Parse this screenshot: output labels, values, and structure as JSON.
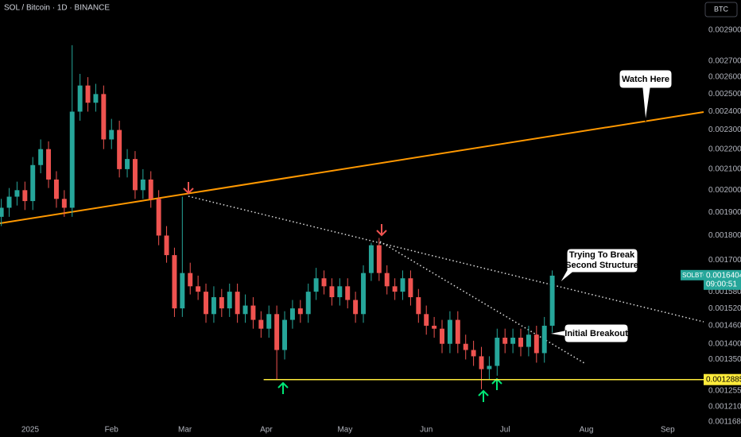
{
  "header": {
    "symbol": "SOL / Bitcoin · 1D · BINANCE",
    "currency_button": "BTC"
  },
  "chart_data": {
    "type": "candlestick",
    "x": [
      -11,
      -8,
      -5,
      -2,
      1,
      4,
      7,
      10,
      13,
      16,
      19,
      22,
      25,
      28,
      31,
      34,
      37,
      40,
      43,
      46,
      49,
      52,
      55,
      58,
      61,
      64,
      67,
      70,
      73,
      76,
      79,
      82,
      85,
      88,
      91,
      94,
      97,
      100,
      103,
      106,
      109,
      112,
      115,
      118,
      121,
      124,
      127,
      130,
      133,
      136,
      139,
      142,
      145,
      148,
      151,
      154,
      157,
      160,
      163,
      166,
      169,
      172,
      175,
      178,
      181,
      184,
      187,
      190,
      193,
      196,
      199
    ],
    "open": [
      0.00188,
      0.00192,
      0.00197,
      0.002,
      0.00195,
      0.00212,
      0.0022,
      0.00205,
      0.00196,
      0.00192,
      0.0024,
      0.00255,
      0.00245,
      0.0025,
      0.00225,
      0.0023,
      0.0021,
      0.00215,
      0.002,
      0.00205,
      0.00196,
      0.0018,
      0.00172,
      0.00152,
      0.00165,
      0.0016,
      0.00158,
      0.0015,
      0.00156,
      0.00152,
      0.00158,
      0.0015,
      0.00153,
      0.00148,
      0.00145,
      0.0015,
      0.00138,
      0.00148,
      0.00152,
      0.0015,
      0.00158,
      0.00163,
      0.0016,
      0.00156,
      0.0016,
      0.00155,
      0.0015,
      0.00165,
      0.00176,
      0.00165,
      0.0016,
      0.00158,
      0.00163,
      0.00156,
      0.0015,
      0.00146,
      0.00145,
      0.0014,
      0.00148,
      0.0014,
      0.00138,
      0.00136,
      0.00132,
      0.00133,
      0.00142,
      0.0014,
      0.00142,
      0.00139,
      0.00143,
      0.00137,
      0.00146
    ],
    "high": [
      0.00196,
      0.00201,
      0.00204,
      0.00204,
      0.00216,
      0.00225,
      0.00224,
      0.00209,
      0.002,
      0.0028,
      0.00262,
      0.0026,
      0.00256,
      0.00255,
      0.00236,
      0.00235,
      0.0022,
      0.00219,
      0.0021,
      0.00209,
      0.002,
      0.00184,
      0.00175,
      0.00197,
      0.00169,
      0.00164,
      0.00161,
      0.0016,
      0.00159,
      0.00161,
      0.00161,
      0.00157,
      0.00156,
      0.00151,
      0.00153,
      0.00153,
      0.00151,
      0.00155,
      0.00155,
      0.00161,
      0.00167,
      0.00166,
      0.00163,
      0.00163,
      0.00163,
      0.00158,
      0.00168,
      0.00177,
      0.00179,
      0.00168,
      0.00163,
      0.00166,
      0.00166,
      0.00159,
      0.00153,
      0.00149,
      0.00148,
      0.00151,
      0.00151,
      0.00143,
      0.00141,
      0.00139,
      0.00136,
      0.00145,
      0.00145,
      0.00145,
      0.00145,
      0.00146,
      0.00146,
      0.00149,
      0.00166
    ],
    "low": [
      0.00184,
      0.00188,
      0.00193,
      0.00191,
      0.00191,
      0.00208,
      0.00201,
      0.00192,
      0.00188,
      0.00188,
      0.00235,
      0.0024,
      0.0024,
      0.0022,
      0.0022,
      0.00206,
      0.00206,
      0.00196,
      0.00196,
      0.00192,
      0.00176,
      0.00169,
      0.00149,
      0.00149,
      0.00157,
      0.00155,
      0.00147,
      0.00147,
      0.00149,
      0.00149,
      0.00147,
      0.00147,
      0.00145,
      0.00142,
      0.00142,
      0.00129,
      0.00135,
      0.00145,
      0.00147,
      0.00147,
      0.00155,
      0.00157,
      0.00153,
      0.00153,
      0.00152,
      0.00147,
      0.00147,
      0.00162,
      0.00162,
      0.00157,
      0.00155,
      0.00155,
      0.00153,
      0.00147,
      0.00143,
      0.00142,
      0.00137,
      0.00137,
      0.00137,
      0.00135,
      0.00133,
      0.00126,
      0.00129,
      0.0013,
      0.00137,
      0.00137,
      0.00136,
      0.00136,
      0.00134,
      0.00134,
      0.00143
    ],
    "close": [
      0.00192,
      0.00197,
      0.002,
      0.00195,
      0.00212,
      0.0022,
      0.00205,
      0.00196,
      0.00192,
      0.0024,
      0.00255,
      0.00245,
      0.0025,
      0.00225,
      0.0023,
      0.0021,
      0.00215,
      0.002,
      0.00205,
      0.00196,
      0.0018,
      0.00172,
      0.00152,
      0.00165,
      0.0016,
      0.00158,
      0.0015,
      0.00156,
      0.00152,
      0.00158,
      0.0015,
      0.00153,
      0.00148,
      0.00145,
      0.0015,
      0.00138,
      0.00148,
      0.00152,
      0.0015,
      0.00158,
      0.00163,
      0.0016,
      0.00156,
      0.0016,
      0.00155,
      0.0015,
      0.00165,
      0.00176,
      0.00165,
      0.0016,
      0.00158,
      0.00163,
      0.00156,
      0.0015,
      0.00146,
      0.00145,
      0.0014,
      0.00148,
      0.0014,
      0.00138,
      0.00136,
      0.00132,
      0.00133,
      0.00142,
      0.0014,
      0.00142,
      0.00139,
      0.00143,
      0.00137,
      0.00146,
      0.00164
    ],
    "up_color": "#26a69a",
    "down_color": "#ef5350",
    "log_scale": true,
    "xlim": [
      -11.5,
      256.7
    ],
    "xticks": [
      {
        "value": 0,
        "label": "2025"
      },
      {
        "value": 31,
        "label": "Feb"
      },
      {
        "value": 59,
        "label": "Mar"
      },
      {
        "value": 90,
        "label": "Apr"
      },
      {
        "value": 120,
        "label": "May"
      },
      {
        "value": 151,
        "label": "Jun"
      },
      {
        "value": 181,
        "label": "Jul"
      },
      {
        "value": 212,
        "label": "Aug"
      },
      {
        "value": 243,
        "label": "Sep"
      }
    ],
    "ylim": [
      0.001155,
      0.00311
    ],
    "yticks": [
      {
        "value": 0.0029,
        "label": "0.0029000"
      },
      {
        "value": 0.0027,
        "label": "0.0027000"
      },
      {
        "value": 0.0026,
        "label": "0.0026000"
      },
      {
        "value": 0.0025,
        "label": "0.0025000"
      },
      {
        "value": 0.0024,
        "label": "0.0024000"
      },
      {
        "value": 0.0023,
        "label": "0.0023000"
      },
      {
        "value": 0.0022,
        "label": "0.0022000"
      },
      {
        "value": 0.0021,
        "label": "0.0021000"
      },
      {
        "value": 0.002,
        "label": "0.0020000"
      },
      {
        "value": 0.0019,
        "label": "0.0019000"
      },
      {
        "value": 0.0018,
        "label": "0.0018000"
      },
      {
        "value": 0.0017,
        "label": "0.0017000"
      },
      {
        "value": 0.00158,
        "label": "0.0015800"
      },
      {
        "value": 0.00152,
        "label": "0.0015200"
      },
      {
        "value": 0.00146,
        "label": "0.0014600"
      },
      {
        "value": 0.0014,
        "label": "0.0014000"
      },
      {
        "value": 0.00135,
        "label": "0.0013500"
      },
      {
        "value": 0.001255,
        "label": "0.0012550"
      },
      {
        "value": 0.00121,
        "label": "0.0012100"
      },
      {
        "value": 0.001168,
        "label": "0.0011680"
      }
    ],
    "support": {
      "value": 0.0012885,
      "label": "0.0012885",
      "color": "#ffeb3b"
    },
    "last_price": {
      "symbol": "SOLBTC",
      "value": 0.0016404,
      "label": "0.0016404",
      "countdown": "09:00:51",
      "color": "#26a69a"
    },
    "annotations": [
      "Watch Here",
      "Trying To Break",
      "Second Structure",
      "Initial Breakout"
    ]
  }
}
